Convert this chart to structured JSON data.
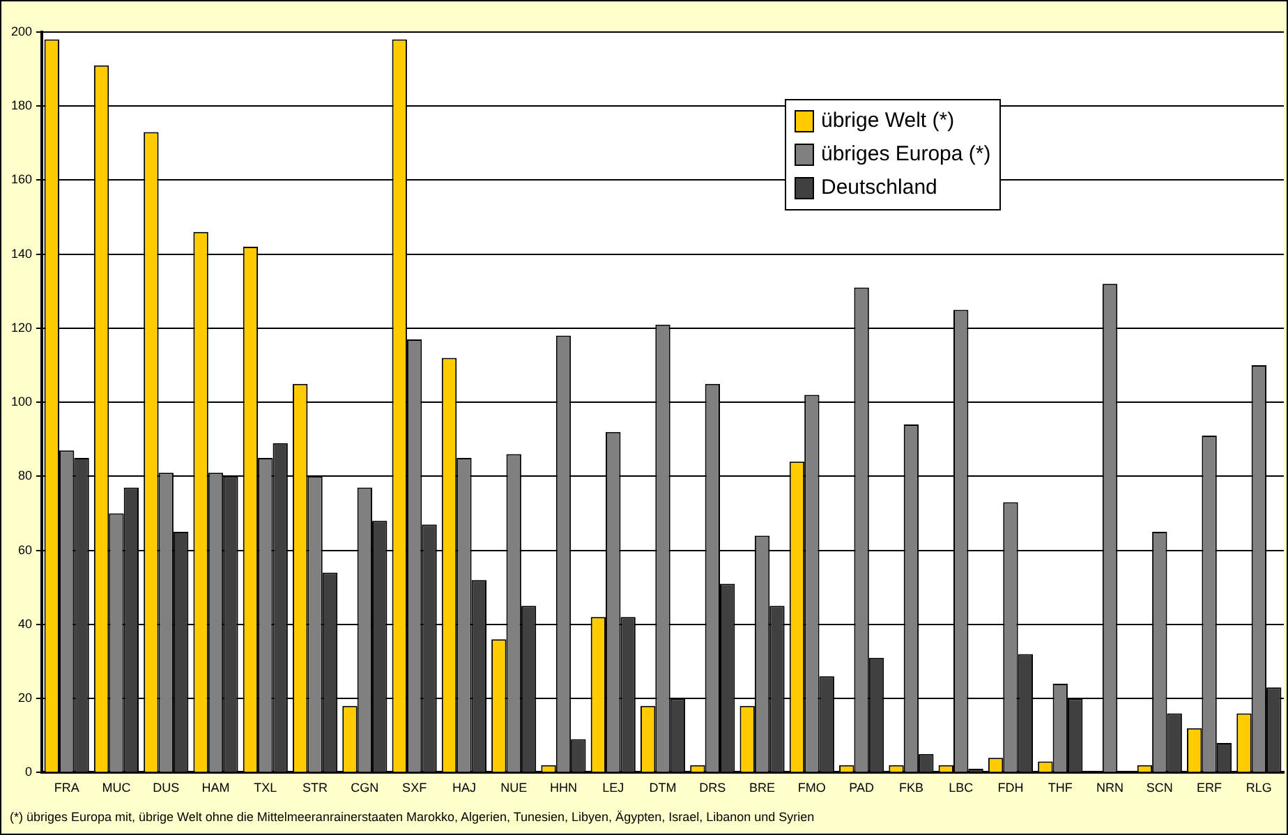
{
  "chart_data": {
    "type": "bar",
    "categories": [
      "FRA",
      "MUC",
      "DUS",
      "HAM",
      "TXL",
      "STR",
      "CGN",
      "SXF",
      "HAJ",
      "NUE",
      "HHN",
      "LEJ",
      "DTM",
      "DRS",
      "BRE",
      "FMO",
      "PAD",
      "FKB",
      "LBC",
      "FDH",
      "THF",
      "NRN",
      "SCN",
      "ERF",
      "RLG"
    ],
    "series": [
      {
        "name": "übrige Welt (*)",
        "color": "#ffcc00",
        "values": [
          198,
          191,
          173,
          146,
          142,
          105,
          18,
          198,
          112,
          36,
          2,
          42,
          18,
          2,
          18,
          84,
          2,
          2,
          2,
          4,
          3,
          0,
          2,
          12,
          16
        ]
      },
      {
        "name": "übriges Europa (*)",
        "color": "#808080",
        "values": [
          87,
          70,
          81,
          81,
          85,
          80,
          77,
          117,
          85,
          86,
          118,
          92,
          121,
          105,
          64,
          102,
          131,
          94,
          125,
          73,
          24,
          132,
          65,
          91,
          110
        ]
      },
      {
        "name": "Deutschland",
        "color": "#404040",
        "values": [
          85,
          77,
          65,
          80,
          89,
          54,
          68,
          67,
          52,
          45,
          9,
          42,
          20,
          51,
          45,
          26,
          31,
          5,
          1,
          32,
          20,
          0,
          16,
          8,
          23
        ]
      }
    ],
    "ylim": [
      0,
      200
    ],
    "yticks": [
      0,
      20,
      40,
      60,
      80,
      100,
      120,
      140,
      160,
      180,
      200
    ],
    "grid": "y",
    "legend": "top right",
    "annotations": [
      "(*) übriges Europa mit, übrige Welt ohne die Mittelmeeranrainerstaaten Marokko, Algerien, Tunesien, Libyen, Ägypten, Israel, Libanon und Syrien"
    ]
  }
}
